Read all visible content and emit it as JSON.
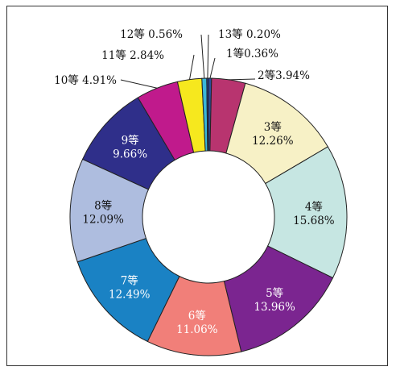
{
  "chart_data": {
    "type": "pie",
    "variant": "donut",
    "title": "",
    "legend": "none",
    "slices": [
      {
        "label": "1等",
        "value": 0.36,
        "text": "1等0.36%",
        "color": "#2a4f9e",
        "label_style": "callout"
      },
      {
        "label": "2等",
        "value": 3.94,
        "text": "2等3.94%",
        "color": "#b8346f",
        "label_style": "callout"
      },
      {
        "label": "3等",
        "value": 12.26,
        "text": "12.26%",
        "color": "#f7f1c6",
        "label_style": "inside"
      },
      {
        "label": "4等",
        "value": 15.68,
        "text": "15.68%",
        "color": "#c6e6e2",
        "label_style": "inside"
      },
      {
        "label": "5等",
        "value": 13.96,
        "text": "13.96%",
        "color": "#7b2590",
        "label_style": "inside"
      },
      {
        "label": "6等",
        "value": 11.06,
        "text": "11.06%",
        "color": "#f17f79",
        "label_style": "inside"
      },
      {
        "label": "7等",
        "value": 12.49,
        "text": "12.49%",
        "color": "#1a82c4",
        "label_style": "inside"
      },
      {
        "label": "8等",
        "value": 12.09,
        "text": "12.09%",
        "color": "#aebddf",
        "label_style": "inside"
      },
      {
        "label": "9等",
        "value": 9.66,
        "text": "9.66%",
        "color": "#2f2f8a",
        "label_style": "inside"
      },
      {
        "label": "10等",
        "value": 4.91,
        "text": "10等 4.91%",
        "color": "#c01a8c",
        "label_style": "callout"
      },
      {
        "label": "11等",
        "value": 2.84,
        "text": "11等 2.84%",
        "color": "#f6e81e",
        "label_style": "callout"
      },
      {
        "label": "12等",
        "value": 0.56,
        "text": "12等 0.56%",
        "color": "#3ab7d9",
        "label_style": "callout"
      },
      {
        "label": "13等",
        "value": 0.2,
        "text": "13等 0.20%",
        "color": "#223f9a",
        "label_style": "callout"
      }
    ]
  }
}
